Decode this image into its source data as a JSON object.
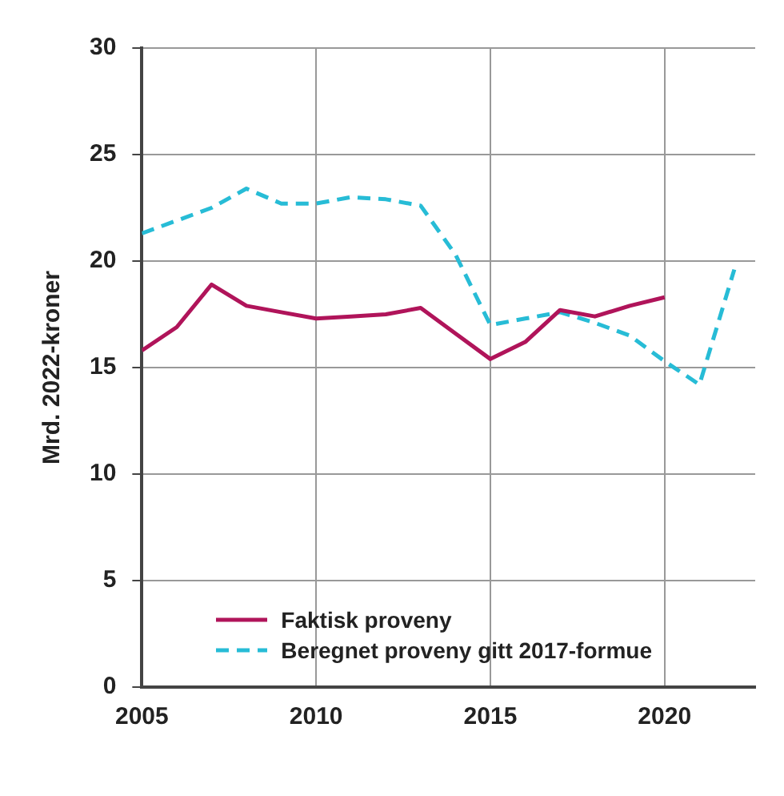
{
  "chart_data": {
    "type": "line",
    "ylabel": "Mrd. 2022-kroner",
    "x": [
      2005,
      2006,
      2007,
      2008,
      2009,
      2010,
      2011,
      2012,
      2013,
      2014,
      2015,
      2016,
      2017,
      2018,
      2019,
      2020,
      2021,
      2022
    ],
    "series": [
      {
        "name": "Faktisk proveny",
        "color": "#b0145a",
        "line_style": "solid",
        "values": [
          15.8,
          16.9,
          18.9,
          17.9,
          17.6,
          17.3,
          17.4,
          17.5,
          17.8,
          16.6,
          15.4,
          16.2,
          17.7,
          17.4,
          17.9,
          18.3,
          null,
          null
        ]
      },
      {
        "name": "Beregnet proveny gitt 2017-formue",
        "color": "#27bcd6",
        "line_style": "dashed",
        "values": [
          21.3,
          21.9,
          22.5,
          23.4,
          22.7,
          22.7,
          23.0,
          22.9,
          22.6,
          20.3,
          17.0,
          17.3,
          17.6,
          17.1,
          16.5,
          15.3,
          14.2,
          19.6
        ]
      }
    ],
    "xlim": [
      2005,
      2022.6
    ],
    "xticks": [
      2005,
      2010,
      2015,
      2020
    ],
    "ylim": [
      0,
      30
    ],
    "yticks": [
      0,
      5,
      10,
      15,
      20,
      25,
      30
    ],
    "grid": true,
    "legend": "bottom left",
    "marker": "none"
  }
}
